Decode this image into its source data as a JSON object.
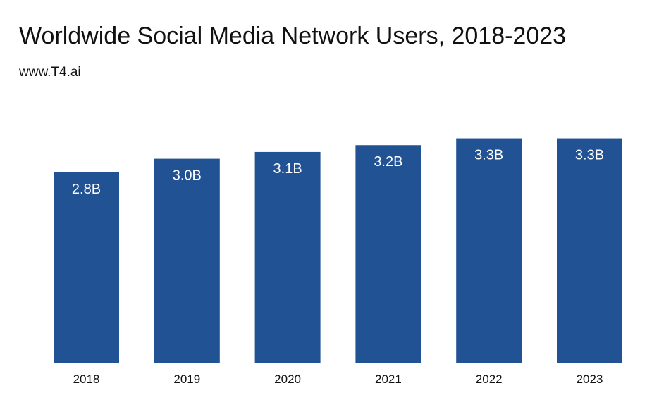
{
  "colors": {
    "bar": "#215294",
    "bar_label": "#ffffff",
    "text": "#111111"
  },
  "chart_data": {
    "type": "bar",
    "title": "Worldwide Social Media Network Users, 2018-2023",
    "subtitle": "www.T4.ai",
    "categories": [
      "2018",
      "2019",
      "2020",
      "2021",
      "2022",
      "2023"
    ],
    "values": [
      2.8,
      3.0,
      3.1,
      3.2,
      3.3,
      3.3
    ],
    "labels": [
      "2.8B",
      "3.0B",
      "3.1B",
      "3.2B",
      "3.3B",
      "3.3B"
    ],
    "xlabel": "",
    "ylabel": "",
    "unit": "B",
    "grid": false,
    "legend": "none"
  }
}
